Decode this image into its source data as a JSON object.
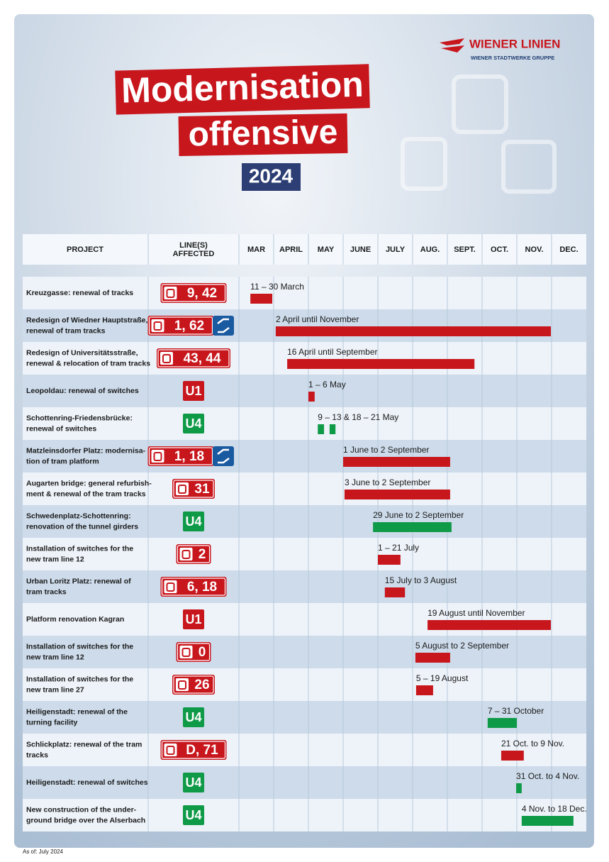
{
  "header": {
    "logo": "WIENER LINIEN",
    "logo_sub": "WIENER STADTWERKE GRUPPE",
    "title": [
      "Modernisation",
      "offensive"
    ],
    "year": "2024"
  },
  "chart_data": {
    "type": "gantt",
    "columns": {
      "project": "PROJECT",
      "lines": [
        "LINE(S)",
        "AFFECTED"
      ]
    },
    "xlim": [
      3,
      13
    ],
    "xticks": [
      {
        "value": 3,
        "label": "MAR"
      },
      {
        "value": 4,
        "label": "APRIL"
      },
      {
        "value": 5,
        "label": "MAY"
      },
      {
        "value": 6,
        "label": "JUNE"
      },
      {
        "value": 7,
        "label": "JULY"
      },
      {
        "value": 8,
        "label": "AUG."
      },
      {
        "value": 9,
        "label": "SEPT."
      },
      {
        "value": 10,
        "label": "OCT."
      },
      {
        "value": 11,
        "label": "NOV."
      },
      {
        "value": 12,
        "label": "DEC."
      }
    ],
    "tasks": [
      {
        "project": [
          "Kreuzgasse: renewal of tracks"
        ],
        "lines": "9, 42",
        "mode": "tram",
        "transfer": false,
        "period": "11 – 30 March",
        "color": "#c8161d",
        "segments": [
          [
            3.33,
            3.96
          ]
        ]
      },
      {
        "project": [
          "Redesign of Wiedner Hauptstraße,",
          "renewal of tram tracks"
        ],
        "lines": "1, 62",
        "mode": "tram",
        "transfer": true,
        "period": "2 April until November",
        "color": "#c8161d",
        "segments": [
          [
            4.06,
            11.98
          ]
        ]
      },
      {
        "project": [
          "Redesign of Universitätsstraße,",
          "renewal & relocation of tram tracks"
        ],
        "lines": "43, 44",
        "mode": "tram",
        "transfer": false,
        "period": "16 April until September",
        "color": "#c8161d",
        "segments": [
          [
            4.39,
            9.78
          ]
        ]
      },
      {
        "project": [
          "Leopoldau: renewal of switches"
        ],
        "lines": "U1",
        "mode": "metro",
        "transfer": false,
        "period": "1 – 6 May",
        "color": "#c8161d",
        "segments": [
          [
            5.0,
            5.18
          ]
        ]
      },
      {
        "project": [
          "Schottenring-Friedensbrücke:",
          "renewal of switches"
        ],
        "lines": "U4",
        "mode": "metro",
        "transfer": false,
        "period": "9 – 13 & 18 – 21 May",
        "color": "#0f9a48",
        "segments": [
          [
            5.27,
            5.45
          ],
          [
            5.61,
            5.78
          ]
        ]
      },
      {
        "project": [
          "Matzleinsdorfer Platz: modernisa-",
          "tion of tram platform"
        ],
        "lines": "1, 18",
        "mode": "tram",
        "transfer": true,
        "period": "1 June to 2 September",
        "color": "#c8161d",
        "segments": [
          [
            6.0,
            9.08
          ]
        ]
      },
      {
        "project": [
          "Augarten bridge: general refurbish-",
          "ment & renewal of the tram tracks"
        ],
        "lines": "31",
        "mode": "tram",
        "transfer": false,
        "period": "3 June to 2 September",
        "color": "#c8161d",
        "segments": [
          [
            6.04,
            9.08
          ]
        ]
      },
      {
        "project": [
          "Schwedenplatz-Schottenring:",
          "renovation of the tunnel girders"
        ],
        "lines": "U4",
        "mode": "metro",
        "transfer": false,
        "period": "29 June to 2 September",
        "color": "#0f9a48",
        "segments": [
          [
            6.86,
            9.12
          ]
        ]
      },
      {
        "project": [
          "Installation of switches for the",
          "new tram line 12"
        ],
        "lines": "2",
        "mode": "tram",
        "transfer": false,
        "period": "1 – 21 July",
        "color": "#c8161d",
        "segments": [
          [
            7.0,
            7.65
          ]
        ]
      },
      {
        "project": [
          "Urban Loritz Platz: renewal of",
          "tram tracks"
        ],
        "lines": "6, 18",
        "mode": "tram",
        "transfer": false,
        "period": "15 July to 3 August",
        "color": "#c8161d",
        "segments": [
          [
            7.2,
            7.78
          ]
        ]
      },
      {
        "project": [
          "Platform renovation Kagran"
        ],
        "lines": "U1",
        "mode": "metro",
        "transfer": false,
        "period": "19 August until November",
        "color": "#c8161d",
        "segments": [
          [
            8.43,
            11.98
          ]
        ]
      },
      {
        "project": [
          "Installation of switches for the",
          "new tram line 12"
        ],
        "lines": "0",
        "mode": "tram",
        "transfer": false,
        "period": "5 August to 2 September",
        "color": "#c8161d",
        "segments": [
          [
            8.08,
            9.08
          ]
        ]
      },
      {
        "project": [
          "Installation of switches for the",
          "new tram line 27"
        ],
        "lines": "26",
        "mode": "tram",
        "transfer": false,
        "period": "5 – 19 August",
        "color": "#c8161d",
        "segments": [
          [
            8.1,
            8.59
          ]
        ]
      },
      {
        "project": [
          "Heiligenstadt: renewal of the",
          "turning facility"
        ],
        "lines": "U4",
        "mode": "metro",
        "transfer": false,
        "period": "7 – 31 October",
        "color": "#0f9a48",
        "segments": [
          [
            10.16,
            11.0
          ]
        ]
      },
      {
        "project": [
          "Schlickplatz: renewal of the tram",
          "tracks"
        ],
        "lines": "D, 71",
        "mode": "tram",
        "transfer": false,
        "period": "21 Oct. to 9 Nov.",
        "color": "#c8161d",
        "segments": [
          [
            10.55,
            11.2
          ]
        ]
      },
      {
        "project": [
          "Heiligenstadt: renewal of switches"
        ],
        "lines": "U4",
        "mode": "metro",
        "transfer": false,
        "period": "31 Oct. to 4 Nov.",
        "color": "#0f9a48",
        "segments": [
          [
            10.98,
            11.14
          ]
        ]
      },
      {
        "project": [
          "New construction of the under-",
          "ground bridge over the Alserbach"
        ],
        "lines": "U4",
        "mode": "metro",
        "transfer": false,
        "period": "4 Nov. to 18 Dec.",
        "color": "#0f9a48",
        "segments": [
          [
            11.14,
            12.63
          ]
        ]
      }
    ]
  },
  "footer": "As of: July 2024"
}
